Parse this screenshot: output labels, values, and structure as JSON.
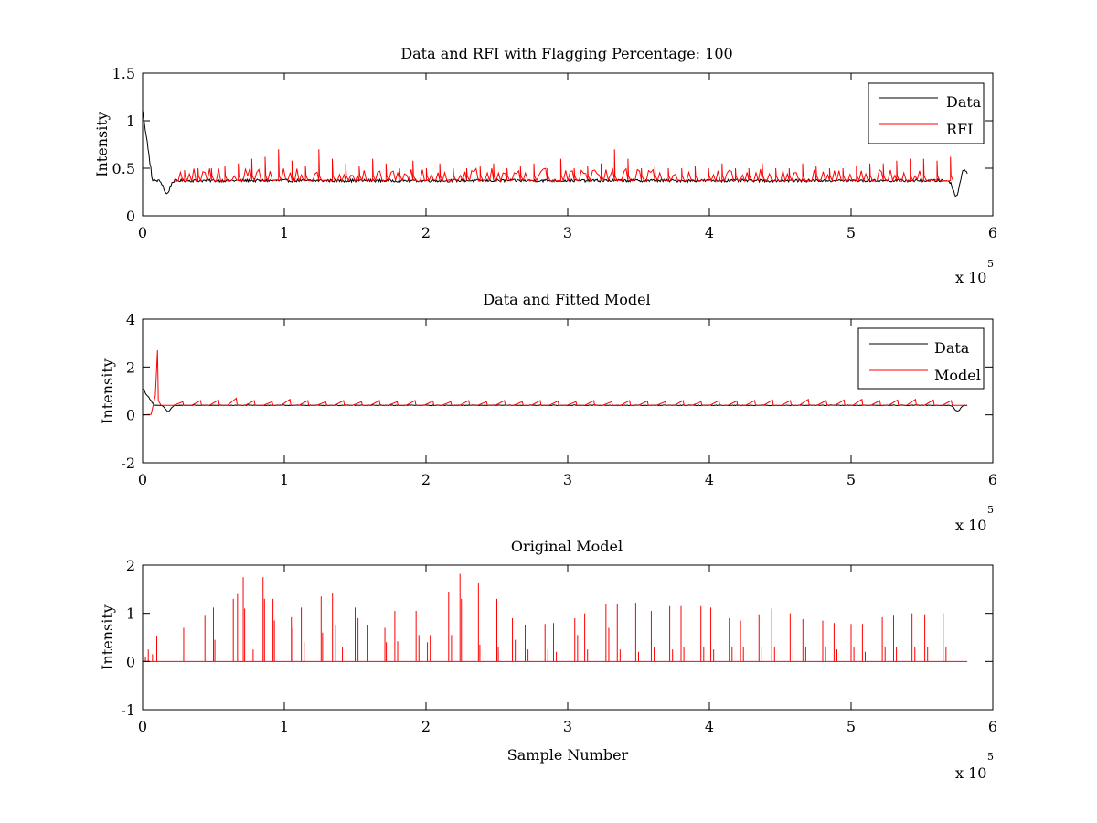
{
  "figure": {
    "background": "#ffffff"
  },
  "chart_data": [
    {
      "type": "line",
      "title": "Data and RFI with Flagging Percentage: 100",
      "xlabel": "",
      "ylabel": "Intensity",
      "xlim": [
        0,
        6
      ],
      "ylim": [
        0,
        1.5
      ],
      "xticks": [
        "0",
        "1",
        "2",
        "3",
        "4",
        "5",
        "6"
      ],
      "yticks": [
        "0",
        "0.5",
        "1",
        "1.5"
      ],
      "ytick_values": [
        0,
        0.5,
        1,
        1.5
      ],
      "x_multiplier_label": "x 10",
      "x_multiplier_exponent": "5",
      "grid": false,
      "legend_position": "top-right",
      "baseline": 0.37,
      "x_end": 5.82,
      "series": [
        {
          "name": "Data",
          "color": "#000000",
          "kind": "data",
          "dips": [
            [
              0.17,
              -0.14
            ],
            [
              5.74,
              -0.16
            ],
            [
              5.8,
              0.12
            ]
          ],
          "onset": {
            "x0": 0.0,
            "peak": 1.12,
            "x1": 0.07
          }
        },
        {
          "name": "RFI",
          "color": "#ff0000",
          "kind": "rfi",
          "x_start": 0.22,
          "x_end": 5.72,
          "spike_heights": [
            0.48,
            0.5,
            0.5,
            0.52,
            0.55,
            0.6,
            0.62,
            0.7,
            0.58,
            0.52,
            0.7,
            0.6,
            0.55,
            0.52,
            0.6,
            0.55,
            0.5,
            0.58,
            0.5,
            0.55,
            0.5,
            0.5,
            0.52,
            0.55,
            0.5,
            0.52,
            0.55,
            0.5,
            0.6,
            0.5,
            0.52,
            0.55,
            0.7,
            0.6,
            0.5,
            0.52,
            0.5,
            0.5,
            0.52,
            0.5,
            0.55,
            0.5,
            0.5,
            0.55,
            0.5,
            0.5,
            0.55,
            0.52,
            0.5,
            0.5,
            0.52,
            0.55,
            0.55,
            0.58,
            0.6,
            0.6,
            0.58,
            0.62
          ]
        }
      ]
    },
    {
      "type": "line",
      "title": "Data and Fitted Model",
      "xlabel": "",
      "ylabel": "Intensity",
      "xlim": [
        0,
        6
      ],
      "ylim": [
        -2,
        4
      ],
      "xticks": [
        "0",
        "1",
        "2",
        "3",
        "4",
        "5",
        "6"
      ],
      "yticks": [
        "-2",
        "0",
        "2",
        "4"
      ],
      "ytick_values": [
        -2,
        0,
        2,
        4
      ],
      "x_multiplier_label": "x 10",
      "x_multiplier_exponent": "5",
      "grid": false,
      "legend_position": "top-right",
      "baseline": 0.4,
      "x_end": 5.82,
      "series": [
        {
          "name": "Data",
          "color": "#000000",
          "kind": "data",
          "dips": [
            [
              0.18,
              -0.25
            ],
            [
              5.75,
              -0.25
            ]
          ],
          "onset": {
            "x0": 0.0,
            "peak": 1.1,
            "x1": 0.08
          }
        },
        {
          "name": "Model",
          "color": "#ff0000",
          "kind": "model",
          "model_spike": {
            "x": 0.105,
            "peak": 2.7
          },
          "spike_heights": [
            0.55,
            0.6,
            0.62,
            0.7,
            0.6,
            0.55,
            0.65,
            0.6,
            0.55,
            0.6,
            0.55,
            0.6,
            0.55,
            0.6,
            0.58,
            0.55,
            0.6,
            0.55,
            0.6,
            0.55,
            0.6,
            0.58,
            0.55,
            0.6,
            0.55,
            0.6,
            0.58,
            0.55,
            0.6,
            0.55,
            0.6,
            0.58,
            0.6,
            0.62,
            0.6,
            0.65,
            0.6,
            0.62,
            0.65,
            0.6,
            0.62,
            0.65,
            0.62,
            0.6
          ]
        }
      ]
    },
    {
      "type": "line",
      "title": "Original Model",
      "xlabel": "Sample Number",
      "ylabel": "Intensity",
      "xlim": [
        0,
        6
      ],
      "ylim": [
        -1,
        2
      ],
      "xticks": [
        "0",
        "1",
        "2",
        "3",
        "4",
        "5",
        "6"
      ],
      "yticks": [
        "-1",
        "0",
        "1",
        "2"
      ],
      "ytick_values": [
        -1,
        0,
        1,
        2
      ],
      "x_multiplier_label": "x 10",
      "x_multiplier_exponent": "5",
      "grid": false,
      "legend_position": "none",
      "baseline": 0.0,
      "x_end": 5.82,
      "series": [
        {
          "name": "",
          "color": "#ff0000",
          "kind": "spikes",
          "spikes": [
            [
              0.02,
              0.1
            ],
            [
              0.04,
              0.25
            ],
            [
              0.07,
              0.15
            ],
            [
              0.1,
              0.52
            ],
            [
              0.29,
              0.7
            ],
            [
              0.44,
              0.95
            ],
            [
              0.5,
              1.12
            ],
            [
              0.51,
              0.45
            ],
            [
              0.64,
              1.3
            ],
            [
              0.67,
              1.4
            ],
            [
              0.71,
              1.75
            ],
            [
              0.72,
              1.1
            ],
            [
              0.78,
              0.25
            ],
            [
              0.85,
              1.75
            ],
            [
              0.86,
              1.3
            ],
            [
              0.92,
              1.3
            ],
            [
              0.93,
              0.85
            ],
            [
              1.05,
              0.92
            ],
            [
              1.06,
              0.7
            ],
            [
              1.12,
              1.12
            ],
            [
              1.14,
              0.4
            ],
            [
              1.26,
              1.35
            ],
            [
              1.27,
              0.6
            ],
            [
              1.34,
              1.42
            ],
            [
              1.36,
              0.75
            ],
            [
              1.41,
              0.3
            ],
            [
              1.5,
              1.12
            ],
            [
              1.52,
              0.9
            ],
            [
              1.59,
              0.75
            ],
            [
              1.71,
              0.7
            ],
            [
              1.72,
              0.4
            ],
            [
              1.78,
              1.05
            ],
            [
              1.8,
              0.42
            ],
            [
              1.93,
              1.05
            ],
            [
              1.95,
              0.55
            ],
            [
              2.01,
              0.4
            ],
            [
              2.03,
              0.55
            ],
            [
              2.16,
              1.45
            ],
            [
              2.18,
              0.55
            ],
            [
              2.24,
              1.82
            ],
            [
              2.25,
              1.3
            ],
            [
              2.37,
              1.62
            ],
            [
              2.38,
              0.35
            ],
            [
              2.5,
              1.3
            ],
            [
              2.51,
              0.3
            ],
            [
              2.61,
              0.9
            ],
            [
              2.63,
              0.45
            ],
            [
              2.7,
              0.75
            ],
            [
              2.72,
              0.25
            ],
            [
              2.84,
              0.78
            ],
            [
              2.86,
              0.25
            ],
            [
              2.9,
              0.8
            ],
            [
              2.92,
              0.2
            ],
            [
              3.05,
              0.9
            ],
            [
              3.07,
              0.55
            ],
            [
              3.12,
              1.0
            ],
            [
              3.14,
              0.25
            ],
            [
              3.27,
              1.2
            ],
            [
              3.29,
              0.7
            ],
            [
              3.35,
              1.2
            ],
            [
              3.37,
              0.25
            ],
            [
              3.48,
              1.22
            ],
            [
              3.5,
              0.2
            ],
            [
              3.59,
              1.05
            ],
            [
              3.61,
              0.3
            ],
            [
              3.72,
              1.15
            ],
            [
              3.74,
              0.25
            ],
            [
              3.8,
              1.15
            ],
            [
              3.82,
              0.3
            ],
            [
              3.94,
              1.15
            ],
            [
              3.96,
              0.3
            ],
            [
              4.01,
              1.12
            ],
            [
              4.03,
              0.25
            ],
            [
              4.14,
              0.9
            ],
            [
              4.16,
              0.3
            ],
            [
              4.22,
              0.85
            ],
            [
              4.24,
              0.3
            ],
            [
              4.35,
              0.98
            ],
            [
              4.37,
              0.3
            ],
            [
              4.44,
              1.1
            ],
            [
              4.46,
              0.3
            ],
            [
              4.57,
              1.0
            ],
            [
              4.59,
              0.3
            ],
            [
              4.66,
              0.88
            ],
            [
              4.68,
              0.3
            ],
            [
              4.8,
              0.85
            ],
            [
              4.82,
              0.3
            ],
            [
              4.88,
              0.8
            ],
            [
              4.9,
              0.25
            ],
            [
              5.0,
              0.78
            ],
            [
              5.02,
              0.3
            ],
            [
              5.08,
              0.78
            ],
            [
              5.1,
              0.2
            ],
            [
              5.22,
              0.92
            ],
            [
              5.24,
              0.3
            ],
            [
              5.3,
              0.95
            ],
            [
              5.32,
              0.3
            ],
            [
              5.43,
              1.0
            ],
            [
              5.45,
              0.3
            ],
            [
              5.52,
              0.98
            ],
            [
              5.54,
              0.3
            ],
            [
              5.65,
              1.0
            ],
            [
              5.67,
              0.3
            ]
          ]
        }
      ]
    }
  ]
}
